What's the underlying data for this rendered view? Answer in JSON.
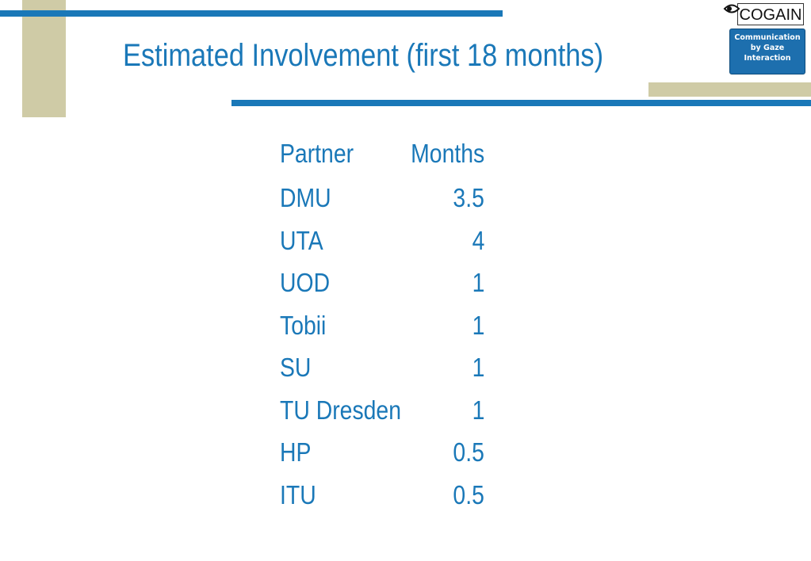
{
  "header": {
    "title": "Estimated Involvement (first 18 months)"
  },
  "logo": {
    "name": "COGAIN",
    "lines": [
      "Communication",
      "by Gaze",
      "Interaction"
    ]
  },
  "table": {
    "columns": [
      "Partner",
      "Months"
    ],
    "rows": [
      [
        "DMU",
        3.5
      ],
      [
        "UTA",
        4
      ],
      [
        "UOD",
        1
      ],
      [
        "Tobii",
        1
      ],
      [
        "SU",
        1
      ],
      [
        "TU Dresden",
        1
      ],
      [
        "HP",
        0.5
      ],
      [
        "ITU",
        0.5
      ]
    ]
  }
}
